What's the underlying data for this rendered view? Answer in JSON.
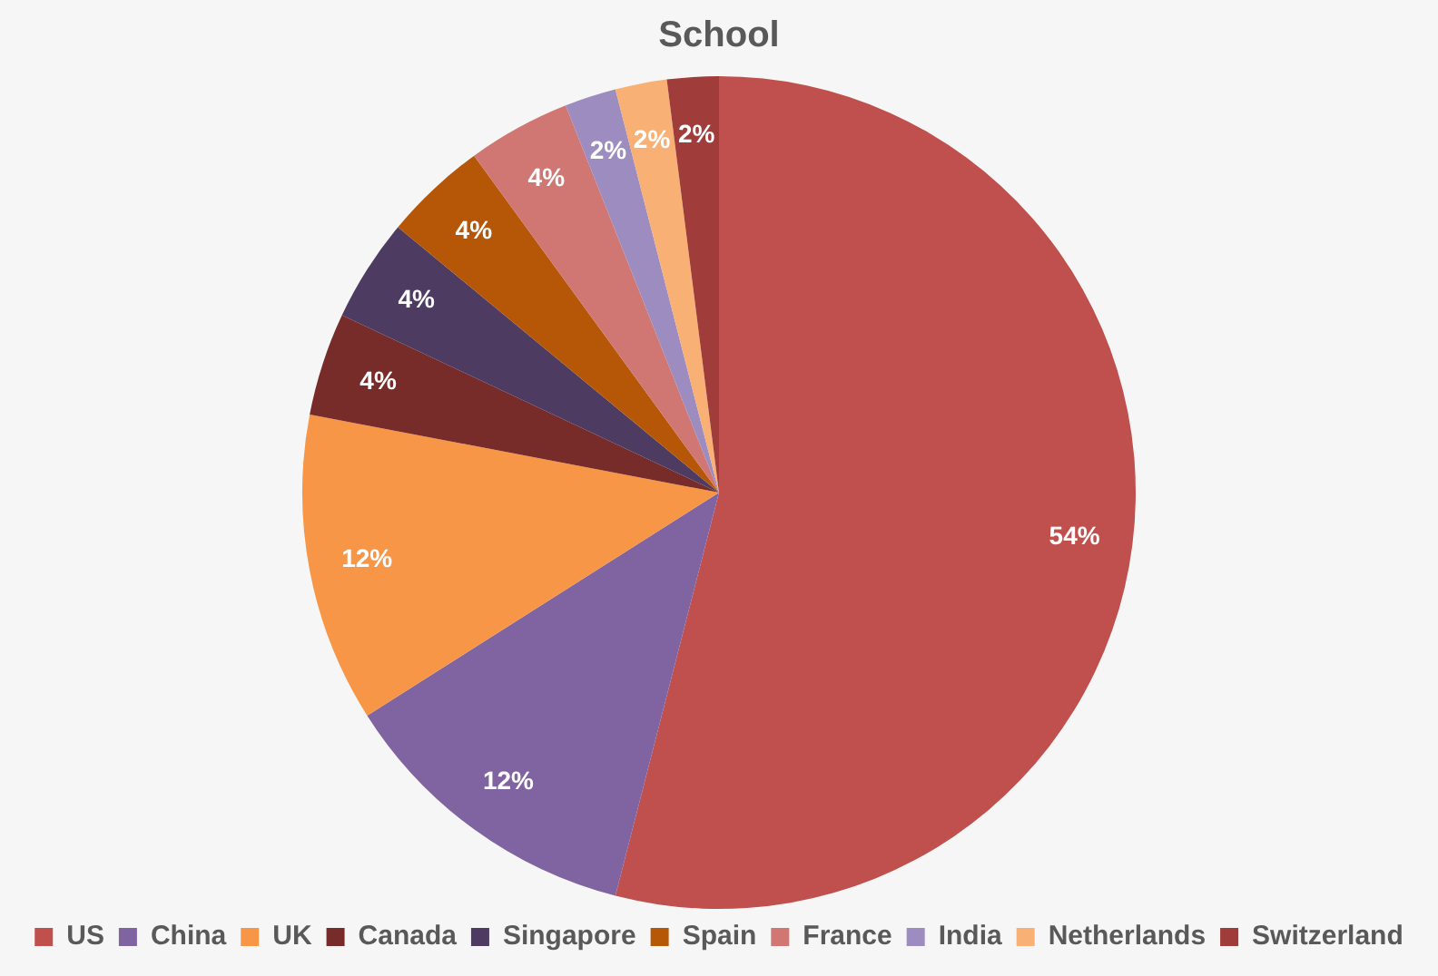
{
  "chart_data": {
    "type": "pie",
    "title": "School",
    "categories": [
      "US",
      "China",
      "UK",
      "Canada",
      "Singapore",
      "Spain",
      "France",
      "India",
      "Netherlands",
      "Switzerland"
    ],
    "values": [
      54,
      12,
      12,
      4,
      4,
      4,
      4,
      2,
      2,
      2
    ],
    "colors": [
      "#c0504d",
      "#8064a2",
      "#f79646",
      "#772c2a",
      "#4d3b62",
      "#b65708",
      "#d07673",
      "#9d8cc0",
      "#f9b074",
      "#a03c3a"
    ],
    "value_labels": [
      "54%",
      "12%",
      "12%",
      "4%",
      "4%",
      "4%",
      "4%",
      "2%",
      "2%",
      "2%"
    ],
    "legend": "bottom"
  }
}
